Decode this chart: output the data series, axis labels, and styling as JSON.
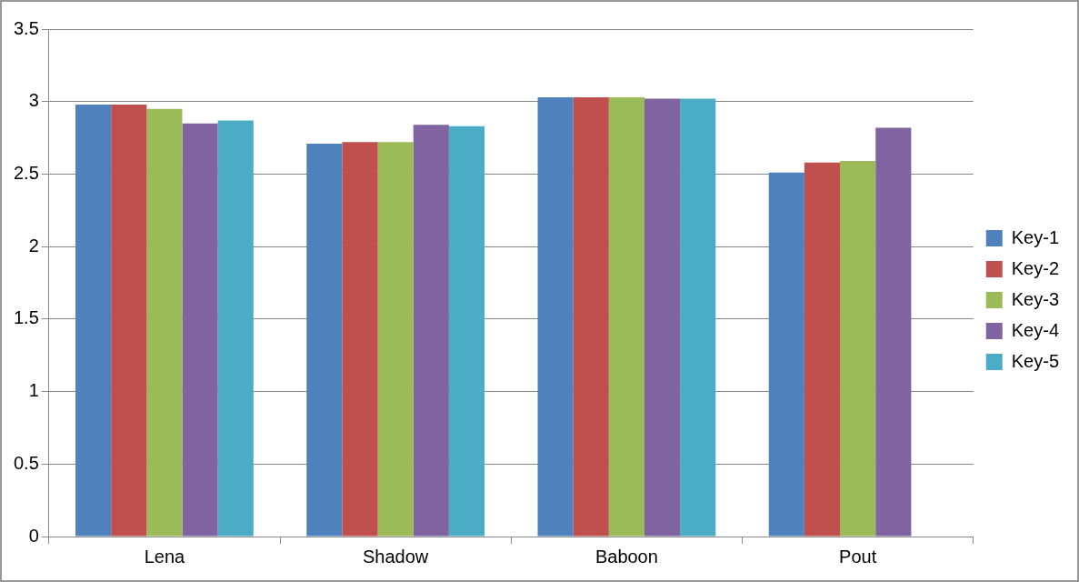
{
  "chart_data": {
    "type": "bar",
    "categories": [
      "Lena",
      "Shadow",
      "Baboon",
      "Pout"
    ],
    "series": [
      {
        "name": "Key-1",
        "color": "#4f81bd",
        "values": [
          2.98,
          2.71,
          3.03,
          2.51
        ]
      },
      {
        "name": "Key-2",
        "color": "#c0504d",
        "values": [
          2.98,
          2.72,
          3.03,
          2.58
        ]
      },
      {
        "name": "Key-3",
        "color": "#9bbb59",
        "values": [
          2.95,
          2.72,
          3.03,
          2.59
        ]
      },
      {
        "name": "Key-4",
        "color": "#8064a2",
        "values": [
          2.85,
          2.84,
          3.02,
          2.82
        ]
      },
      {
        "name": "Key-5",
        "color": "#4bacc6",
        "values": [
          2.87,
          2.83,
          3.02,
          null
        ]
      }
    ],
    "ylim": [
      0,
      3.5
    ],
    "yticks": [
      0,
      0.5,
      1,
      1.5,
      2,
      2.5,
      3,
      3.5
    ],
    "grid": "y",
    "legend": "right"
  }
}
